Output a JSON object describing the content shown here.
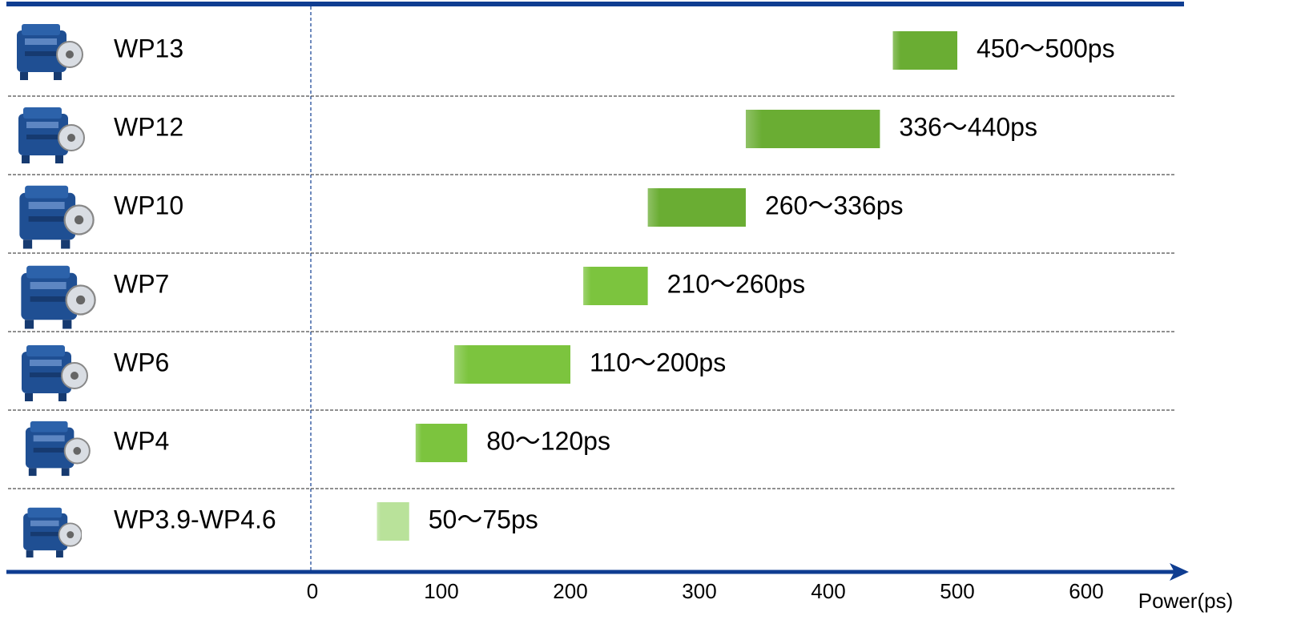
{
  "chart_data": {
    "type": "range-bar",
    "categories": [
      "WP13",
      "WP12",
      "WP10",
      "WP7",
      "WP6",
      "WP4",
      "WP3.9-WP4.6"
    ],
    "low": [
      450,
      336,
      260,
      210,
      110,
      80,
      50
    ],
    "high": [
      500,
      440,
      336,
      260,
      200,
      120,
      75
    ],
    "value_labels": [
      "450～500ps",
      "336～440ps",
      "260～336ps",
      "210～260ps",
      "110～200ps",
      "80～120ps",
      "50～75ps"
    ],
    "colors": [
      "#6aad33",
      "#6aad33",
      "#6aad33",
      "#7cc43e",
      "#7cc43e",
      "#7cc43e",
      "#b9e29a"
    ],
    "xlim": [
      0,
      600
    ],
    "xticks": [
      0,
      100,
      200,
      300,
      400,
      500,
      600
    ],
    "x_label": "Power(ps)"
  }
}
